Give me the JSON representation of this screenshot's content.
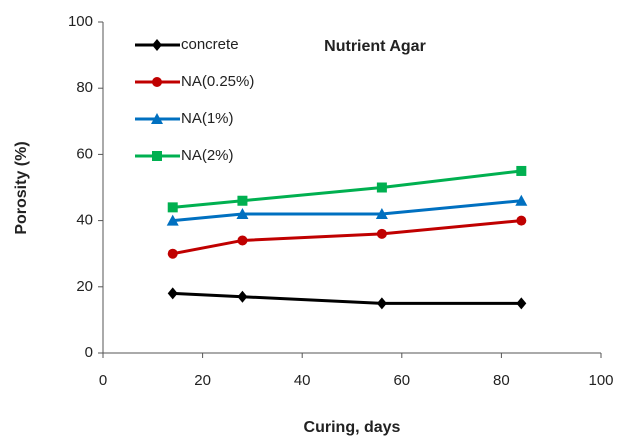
{
  "chart_data": {
    "type": "line",
    "title": "Nutrient Agar",
    "x_label": "Curing, days",
    "y_label": "Porosity (%)",
    "x": [
      14,
      28,
      56,
      84
    ],
    "series": [
      {
        "name": "concrete",
        "color": "#000000",
        "marker": "diamond",
        "values": [
          18,
          17,
          15,
          15
        ]
      },
      {
        "name": "NA(0.25%)",
        "color": "#c00000",
        "marker": "circle",
        "values": [
          30,
          34,
          36,
          40
        ]
      },
      {
        "name": "NA(1%)",
        "color": "#0070c0",
        "marker": "triangle",
        "values": [
          40,
          42,
          42,
          46
        ]
      },
      {
        "name": "NA(2%)",
        "color": "#00b050",
        "marker": "square",
        "values": [
          44,
          46,
          50,
          55
        ]
      }
    ],
    "xlim": [
      0,
      100
    ],
    "xticks": [
      0,
      20,
      40,
      60,
      80,
      100
    ],
    "ylim": [
      0,
      100
    ],
    "yticks": [
      0,
      20,
      40,
      60,
      80,
      100
    ],
    "legend": "upper-left"
  }
}
